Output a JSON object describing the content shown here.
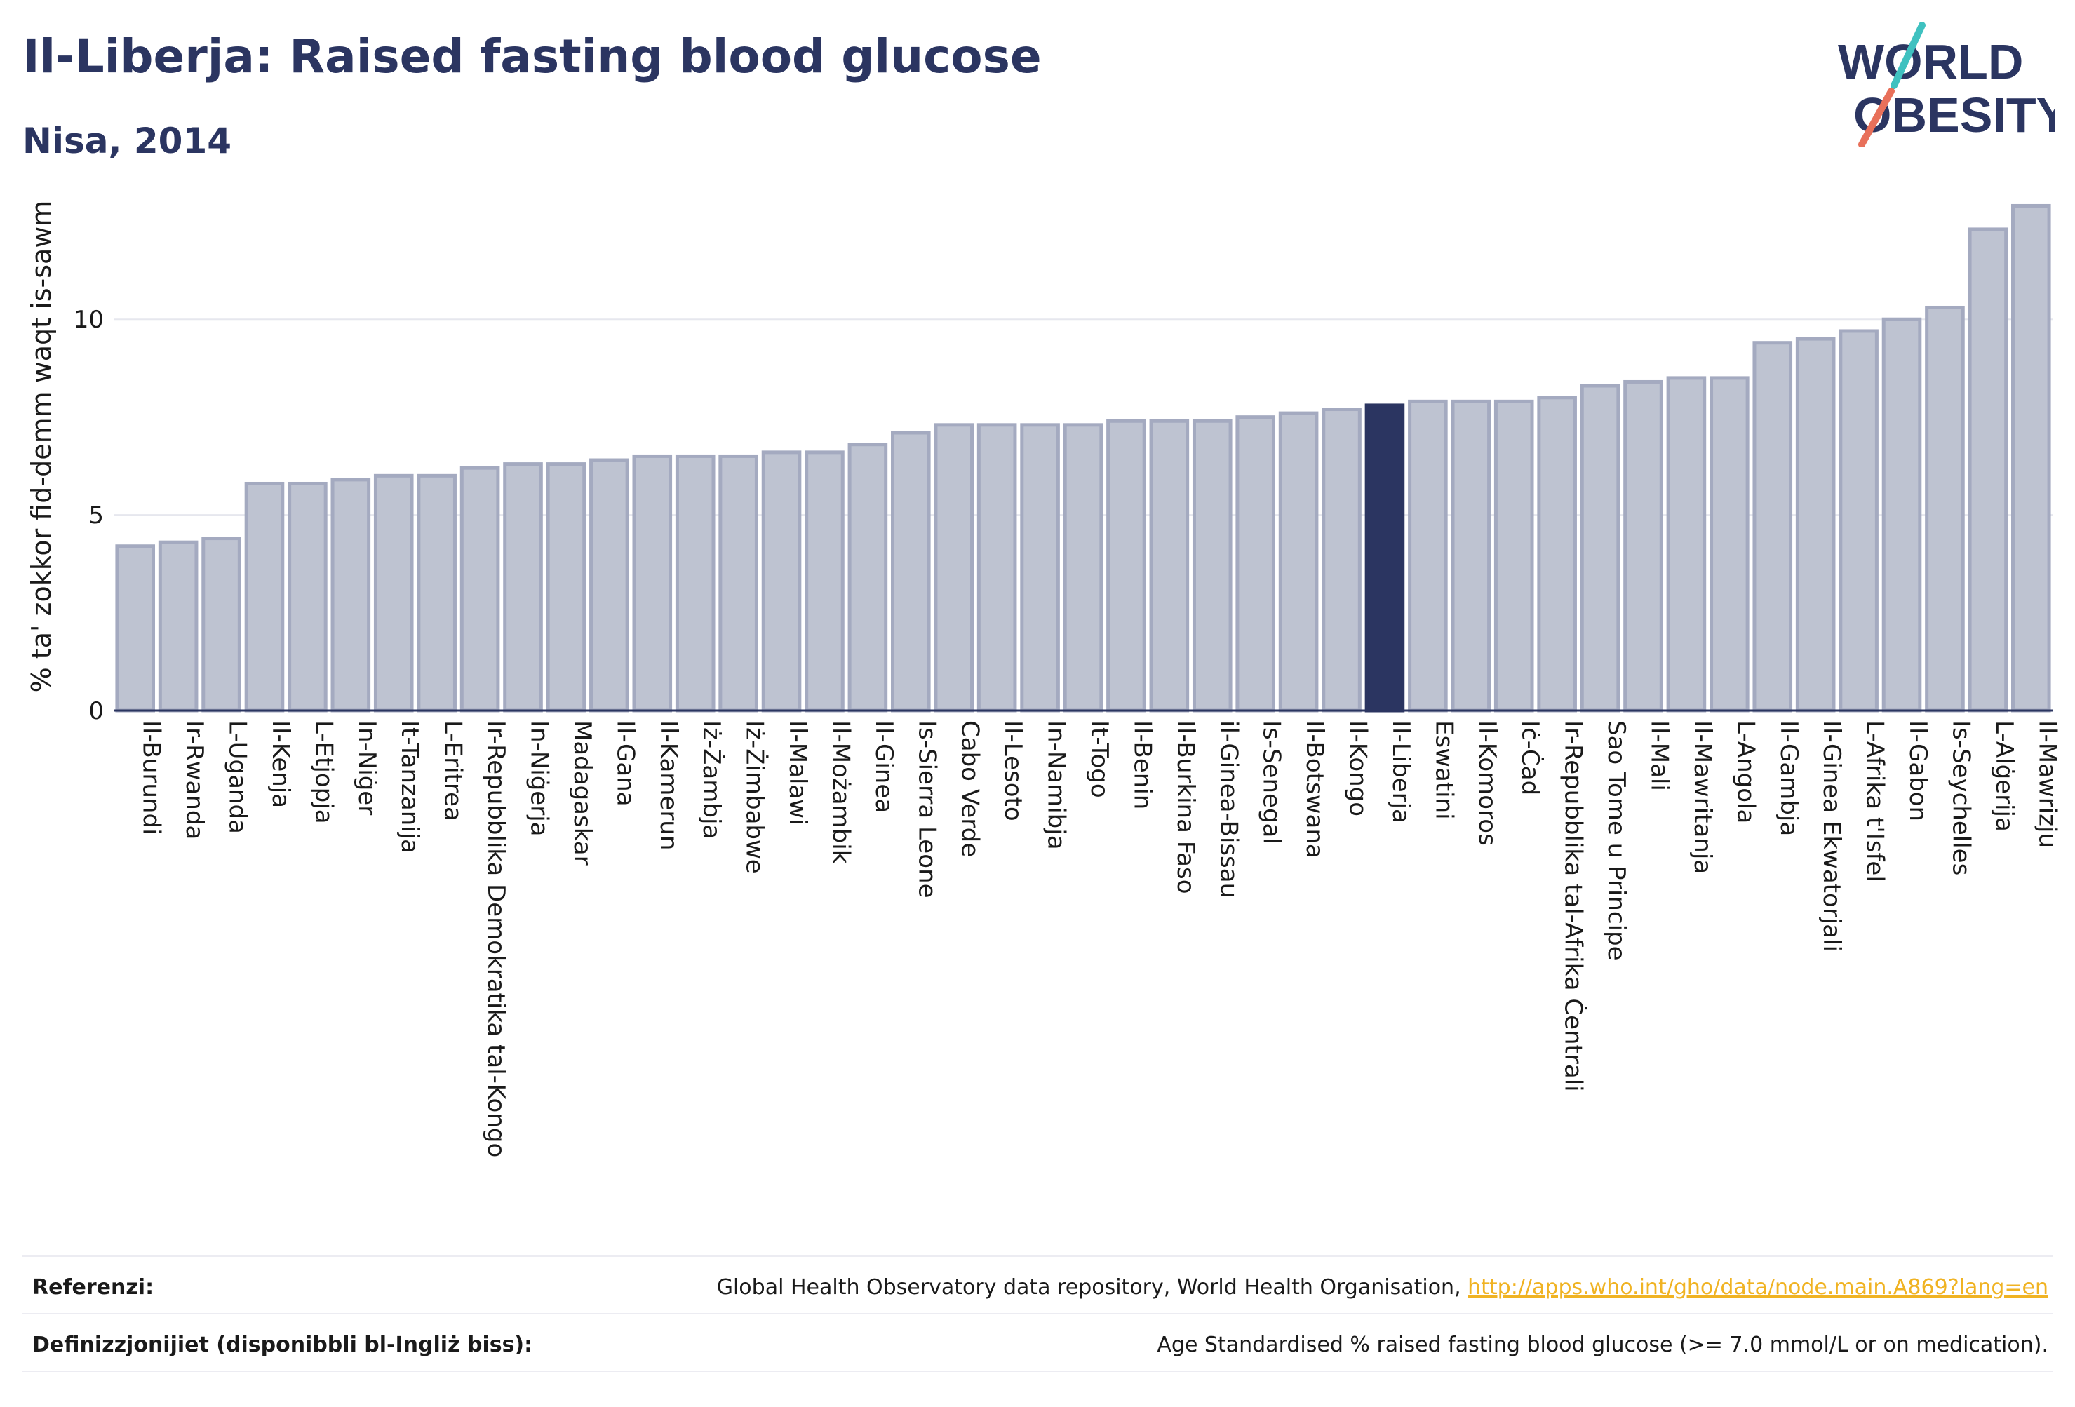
{
  "header": {
    "title": "Il-Liberja: Raised fasting blood glucose",
    "subtitle": "Nisa, 2014"
  },
  "logo": {
    "line1": "WORLD",
    "line2": "OBESITY",
    "slash_colors": [
      "#3fc1c0",
      "#e8705a"
    ]
  },
  "colors": {
    "bar_default": "#bec3d1",
    "bar_default_stroke": "#a4aac0",
    "bar_highlight": "#2b3561",
    "text": "#2b3561",
    "link": "#f0b323"
  },
  "chart_data": {
    "type": "bar",
    "ylabel": "% ta' zokkor fid-demm waqt is-sawm",
    "xlabel": "",
    "ylim": [
      0,
      13.5
    ],
    "yticks": [
      0,
      5,
      10
    ],
    "grid": true,
    "highlight": "Il-Liberja",
    "categories": [
      "Il-Burundi",
      "Ir-Rwanda",
      "L-Uganda",
      "Il-Kenja",
      "L-Etjopja",
      "In-Niġer",
      "It-Tanzanija",
      "L-Eritrea",
      "Ir-Repubblika Demokratika tal-Kongo",
      "In-Niġerja",
      "Madagaskar",
      "Il-Gana",
      "Il-Kamerun",
      "Iż-Żambja",
      "Iż-Żimbabwe",
      "Il-Malawi",
      "Il-Możambik",
      "Il-Ginea",
      "Is-Sierra Leone",
      "Cabo Verde",
      "Il-Lesoto",
      "In-Namibja",
      "It-Togo",
      "Il-Benin",
      "Il-Burkina Faso",
      "il-Ginea-Bissau",
      "Is-Senegal",
      "Il-Botswana",
      "Il-Kongo",
      "Il-Liberja",
      "Eswatini",
      "Il-Komoros",
      "Iċ-Ċad",
      "Ir-Repubblika tal-Afrika Ċentrali",
      "Sao Tome u Principe",
      "Il-Mali",
      "Il-Mawritanja",
      "L-Angola",
      "Il-Gambja",
      "Il-Ginea Ekwatorjali",
      "L-Afrika t'Isfel",
      "Il-Gabon",
      "Is-Seychelles",
      "L-Alġerija",
      "Il-Mawrizju"
    ],
    "values": [
      4.2,
      4.3,
      4.4,
      5.8,
      5.8,
      5.9,
      6.0,
      6.0,
      6.2,
      6.3,
      6.3,
      6.4,
      6.5,
      6.5,
      6.5,
      6.6,
      6.6,
      6.8,
      7.1,
      7.3,
      7.3,
      7.3,
      7.3,
      7.4,
      7.4,
      7.4,
      7.5,
      7.6,
      7.7,
      7.8,
      7.9,
      7.9,
      7.9,
      8.0,
      8.3,
      8.4,
      8.5,
      8.5,
      9.4,
      9.5,
      9.7,
      10.0,
      10.3,
      12.3,
      12.9
    ]
  },
  "footer": {
    "references_label": "Referenzi:",
    "references_text": "Global Health Observatory data repository, World Health Organisation, ",
    "references_link": "http://apps.who.int/gho/data/node.main.A869?lang=en",
    "definitions_label": "Definizzjonijiet (disponibbli bl-Ingliż biss):",
    "definitions_text": "Age Standardised % raised fasting blood glucose (>= 7.0 mmol/L or on medication)."
  }
}
